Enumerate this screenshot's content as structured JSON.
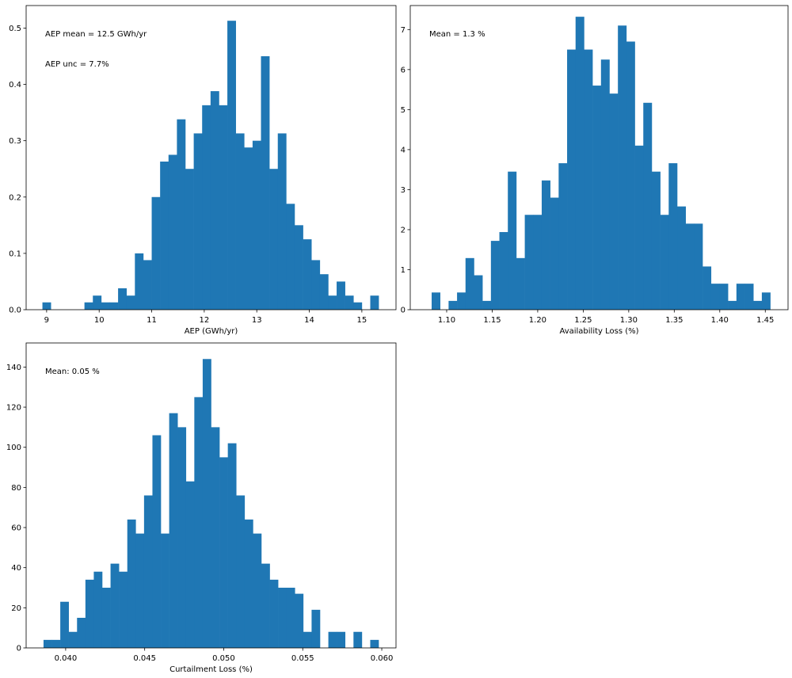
{
  "chart_data": [
    {
      "type": "histogram",
      "xlabel": "AEP (GWh/yr)",
      "annotations": [
        "AEP mean = 12.5 GWh/yr",
        "AEP unc = 7.7%"
      ],
      "color": "#1f77b4",
      "bins": [
        8.92,
        9.08,
        9.24,
        9.4,
        9.56,
        9.72,
        9.88,
        10.04,
        10.2,
        10.36,
        10.52,
        10.68,
        10.84,
        11,
        11.16,
        11.32,
        11.48,
        11.64,
        11.8,
        11.96,
        12.12,
        12.28,
        12.44,
        12.6,
        12.76,
        12.92,
        13.08,
        13.24,
        13.4,
        13.56,
        13.72,
        13.88,
        14.04,
        14.2,
        14.36,
        14.52,
        14.68,
        14.84,
        15,
        15.16,
        15.32
      ],
      "values": [
        0.013,
        0,
        0,
        0,
        0,
        0.013,
        0.025,
        0.013,
        0.013,
        0.038,
        0.025,
        0.1,
        0.088,
        0.2,
        0.263,
        0.275,
        0.338,
        0.25,
        0.313,
        0.363,
        0.388,
        0.363,
        0.513,
        0.313,
        0.288,
        0.3,
        0.45,
        0.25,
        0.313,
        0.188,
        0.15,
        0.125,
        0.088,
        0.063,
        0.025,
        0.05,
        0.025,
        0.013,
        0,
        0.025
      ],
      "xlim": [
        8.61,
        15.65
      ],
      "xticks": [
        9,
        10,
        11,
        12,
        13,
        14,
        15
      ],
      "ylim": [
        0,
        0.54
      ],
      "yticks": [
        {
          "value": 0,
          "label": "0.0"
        },
        0.1,
        0.2,
        0.3,
        0.4,
        0.5
      ]
    },
    {
      "type": "histogram",
      "xlabel": "Availability Loss (%)",
      "annotations": [
        "Mean = 1.3 %"
      ],
      "color": "#1f77b4",
      "bins": [
        1.0835,
        1.0928,
        1.1021,
        1.1114,
        1.1207,
        1.13,
        1.1393,
        1.1486,
        1.1579,
        1.1672,
        1.1765,
        1.1858,
        1.1951,
        1.2044,
        1.2137,
        1.223,
        1.2323,
        1.2416,
        1.2509,
        1.2602,
        1.2695,
        1.2788,
        1.2881,
        1.2974,
        1.3067,
        1.316,
        1.3253,
        1.3346,
        1.3439,
        1.3532,
        1.3625,
        1.3718,
        1.3811,
        1.3904,
        1.3997,
        1.409,
        1.4183,
        1.4276,
        1.4369,
        1.4462,
        1.4555
      ],
      "values": [
        0.43,
        0,
        0.22,
        0.43,
        1.29,
        0.86,
        0.22,
        1.72,
        1.94,
        3.45,
        1.29,
        2.37,
        2.37,
        3.23,
        2.8,
        3.66,
        6.5,
        7.32,
        6.5,
        5.6,
        6.25,
        5.4,
        7.1,
        6.7,
        4.1,
        5.17,
        3.45,
        2.37,
        3.66,
        2.58,
        2.15,
        2.15,
        1.08,
        0.65,
        0.65,
        0.22,
        0.65,
        0.65,
        0.22,
        0.43
      ],
      "xlim": [
        1.06,
        1.475
      ],
      "xticks": [
        {
          "value": 1.1,
          "label": "1.10"
        },
        1.15,
        {
          "value": 1.2,
          "label": "1.20"
        },
        1.25,
        {
          "value": 1.3,
          "label": "1.30"
        },
        1.35,
        {
          "value": 1.4,
          "label": "1.40"
        },
        1.45
      ],
      "ylim": [
        0,
        7.6
      ],
      "yticks": [
        0,
        1,
        2,
        3,
        4,
        5,
        6,
        7
      ]
    },
    {
      "type": "histogram",
      "xlabel": "Curtailment Loss (%)",
      "annotations": [
        "Mean: 0.05 %"
      ],
      "color": "#1f77b4",
      "bins": [
        0.0386,
        0.03913,
        0.03966,
        0.04019,
        0.04072,
        0.04125,
        0.04178,
        0.04231,
        0.04284,
        0.04337,
        0.0439,
        0.04443,
        0.04496,
        0.04549,
        0.04602,
        0.04655,
        0.04708,
        0.04761,
        0.04814,
        0.04867,
        0.0492,
        0.04973,
        0.05026,
        0.05079,
        0.05132,
        0.05185,
        0.05238,
        0.05291,
        0.05344,
        0.05397,
        0.0545,
        0.05503,
        0.05556,
        0.05609,
        0.05662,
        0.05715,
        0.05768,
        0.05821,
        0.05874,
        0.05927,
        0.0598
      ],
      "values": [
        4,
        4,
        23,
        8,
        15,
        34,
        38,
        30,
        42,
        38,
        64,
        57,
        76,
        106,
        57,
        117,
        110,
        83,
        125,
        144,
        110,
        95,
        102,
        76,
        64,
        57,
        42,
        34,
        30,
        30,
        27,
        8,
        19,
        0,
        8,
        8,
        0,
        8,
        0,
        4
      ],
      "xlim": [
        0.0375,
        0.0609
      ],
      "xticks": [
        {
          "value": 0.04,
          "label": "0.040"
        },
        0.045,
        {
          "value": 0.05,
          "label": "0.050"
        },
        0.055,
        {
          "value": 0.06,
          "label": "0.060"
        }
      ],
      "ylim": [
        0,
        152
      ],
      "yticks": [
        0,
        20,
        40,
        60,
        80,
        100,
        120,
        140
      ]
    }
  ]
}
